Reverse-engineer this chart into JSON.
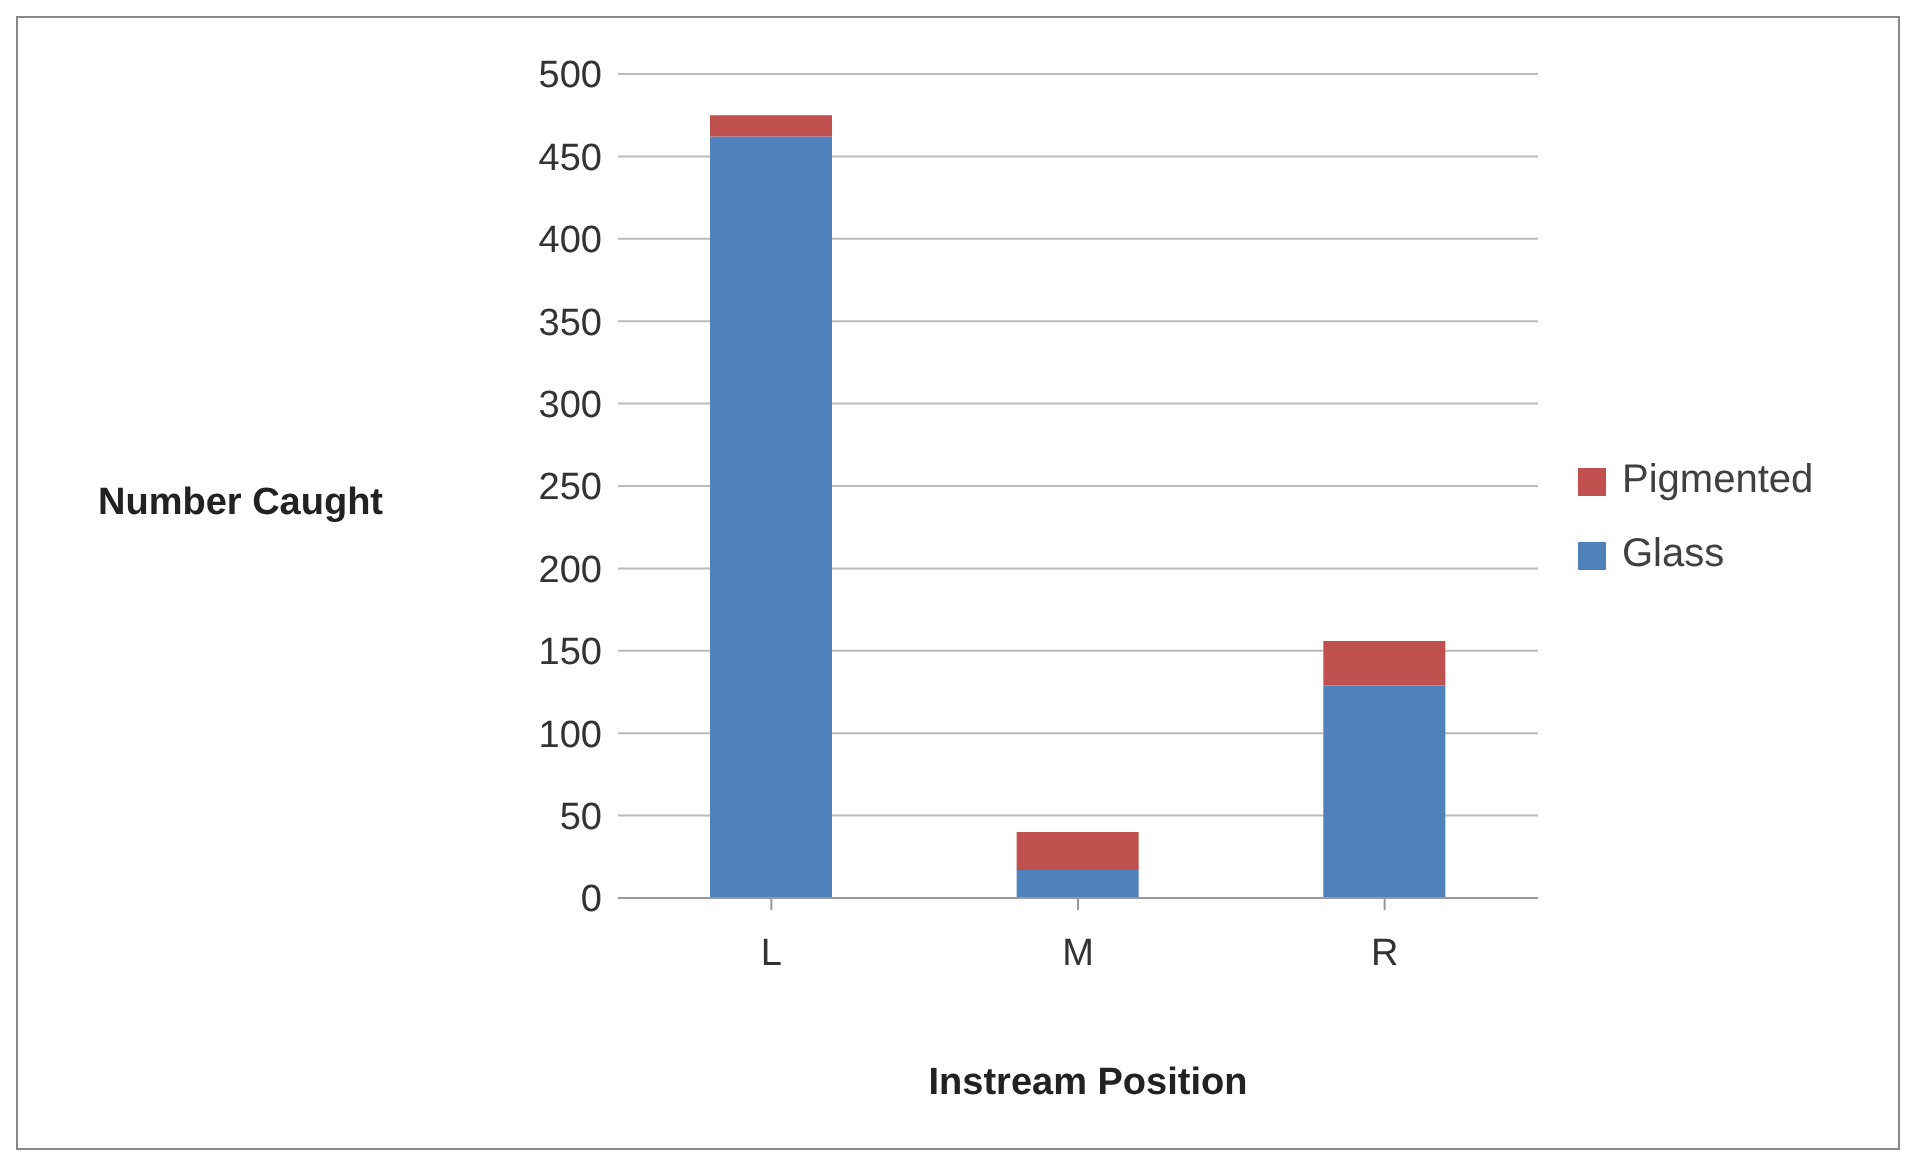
{
  "chart_data": {
    "type": "bar",
    "stacked": true,
    "xlabel": "Instream Position",
    "ylabel": "Number Caught",
    "categories": [
      "L",
      "M",
      "R"
    ],
    "series": [
      {
        "name": "Glass",
        "color": "#4f81bd",
        "values": [
          462,
          17,
          129
        ]
      },
      {
        "name": "Pigmented",
        "color": "#c0504d",
        "values": [
          13,
          23,
          27
        ]
      }
    ],
    "ylim": [
      0,
      500
    ],
    "yticks": [
      0,
      50,
      100,
      150,
      200,
      250,
      300,
      350,
      400,
      450,
      500
    ],
    "grid": "y",
    "legend": "right"
  }
}
